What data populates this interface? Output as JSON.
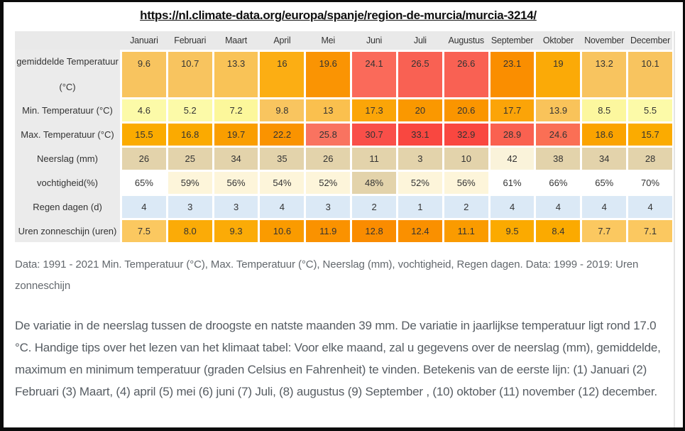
{
  "page": {
    "url_heading": "https://nl.climate-data.org/europa/spanje/region-de-murcia/murcia-3214/"
  },
  "table": {
    "months": [
      "Januari",
      "Februari",
      "Maart",
      "April",
      "Mei",
      "Juni",
      "Juli",
      "Augustus",
      "September",
      "Oktober",
      "November",
      "December"
    ],
    "rows": [
      {
        "label": "gemiddelde Temperatuur (°C)",
        "label_lines": [
          "gemiddelde Temperatuur",
          "(°C)"
        ],
        "values": [
          "9.6",
          "10.7",
          "13.3",
          "16",
          "19.6",
          "24.1",
          "26.5",
          "26.6",
          "23.1",
          "19",
          "13.2",
          "10.1"
        ],
        "cell_colors": [
          "#f8c45f",
          "#f8c45f",
          "#f9c357",
          "#fcae13",
          "#fa9403",
          "#fa6a5a",
          "#f96153",
          "#f96153",
          "#fa8e00",
          "#fbaa07",
          "#f8c45f",
          "#f8c45f"
        ]
      },
      {
        "label": "Min. Temperatuur (°C)",
        "label_lines": [
          "Min. Temperatuur (°C)"
        ],
        "values": [
          "4.6",
          "5.2",
          "7.2",
          "9.8",
          "13",
          "17.3",
          "20",
          "20.6",
          "17.7",
          "13.9",
          "8.5",
          "5.5"
        ],
        "cell_colors": [
          "#fcfaa8",
          "#fcfaa8",
          "#fcf79b",
          "#f9c55f",
          "#fac04e",
          "#fba508",
          "#fa9800",
          "#fa9500",
          "#fba408",
          "#f9c35a",
          "#fcf79e",
          "#fcfaa8"
        ]
      },
      {
        "label": "Max. Temperatuur (°C)",
        "label_lines": [
          "Max. Temperatuur (°C)"
        ],
        "values": [
          "15.5",
          "16.8",
          "19.7",
          "22.2",
          "25.8",
          "30.7",
          "33.1",
          "32.9",
          "28.9",
          "24.6",
          "18.6",
          "15.7"
        ],
        "cell_colors": [
          "#fbab00",
          "#fbaa00",
          "#fa9e00",
          "#fa9300",
          "#f97360",
          "#f94f49",
          "#f94740",
          "#f94740",
          "#fa6150",
          "#fa6f55",
          "#fba300",
          "#fbab00"
        ]
      },
      {
        "label": "Neerslag (mm)",
        "label_lines": [
          "Neerslag (mm)"
        ],
        "values": [
          "26",
          "25",
          "34",
          "35",
          "26",
          "11",
          "3",
          "10",
          "42",
          "38",
          "34",
          "28"
        ],
        "cell_colors": [
          "#e3d3ab",
          "#e3d3ab",
          "#e3d3ab",
          "#e3d3ab",
          "#e3d3ab",
          "#e3d3ab",
          "#e3d3ab",
          "#e3d3ab",
          "#faf3da",
          "#e3d3ab",
          "#e3d3ab",
          "#e3d3ab"
        ]
      },
      {
        "label": "vochtigheid(%)",
        "label_lines": [
          "vochtigheid(%)"
        ],
        "values": [
          "65%",
          "59%",
          "56%",
          "54%",
          "52%",
          "48%",
          "52%",
          "56%",
          "61%",
          "66%",
          "65%",
          "70%"
        ],
        "cell_colors": [
          "#ffffff",
          "#fdf5da",
          "#fdf5da",
          "#fdf5da",
          "#fdf5da",
          "#e3d3ab",
          "#fdf5da",
          "#fdf5da",
          "#ffffff",
          "#ffffff",
          "#ffffff",
          "#ffffff"
        ]
      },
      {
        "label": "Regen dagen (d)",
        "label_lines": [
          "Regen dagen (d)"
        ],
        "values": [
          "4",
          "3",
          "3",
          "4",
          "3",
          "2",
          "1",
          "2",
          "4",
          "4",
          "4",
          "4"
        ],
        "cell_colors": [
          "#dbe9f6",
          "#dbe9f6",
          "#dbe9f6",
          "#dbe9f6",
          "#dbe9f6",
          "#dbe9f6",
          "#dbe9f6",
          "#dbe9f6",
          "#dbe9f6",
          "#dbe9f6",
          "#dbe9f6",
          "#dbe9f6"
        ]
      },
      {
        "label": "Uren zonneschijn (uren)",
        "label_lines": [
          "Uren zonneschijn (uren)"
        ],
        "values": [
          "7.5",
          "8.0",
          "9.3",
          "10.6",
          "11.9",
          "12.8",
          "12.4",
          "11.1",
          "9.5",
          "8.4",
          "7.7",
          "7.1"
        ],
        "cell_colors": [
          "#fbc860",
          "#fbab07",
          "#fbab07",
          "#fa9b00",
          "#fa9200",
          "#fa8c00",
          "#fa9000",
          "#fa9b00",
          "#fbaa00",
          "#fbaa00",
          "#fbc860",
          "#fbc860"
        ]
      }
    ]
  },
  "notes": {
    "data_note": "Data: 1991 - 2021 Min. Temperatuur (°C), Max. Temperatuur (°C), Neerslag (mm), vochtigheid, Regen dagen. Data: 1999 - 2019: Uren zonneschijn"
  },
  "description": {
    "text": "De variatie in de neerslag tussen de droogste en natste maanden 39 mm. De variatie in jaarlijkse temperatuur ligt rond 17.0 °C. Handige tips over het lezen van het klimaat tabel: Voor elke maand, zal u gegevens over de neerslag (mm), gemiddelde, maximum en minimum temperatuur (graden Celsius en Fahrenheit) te vinden. Betekenis van de eerste lijn: (1) Januari (2) Februari (3) Maart, (4) april (5) mei (6) juni (7) Juli, (8) augustus (9) September , (10) oktober (11) november (12) december."
  },
  "chart_data": {
    "type": "table",
    "categories": [
      "Januari",
      "Februari",
      "Maart",
      "April",
      "Mei",
      "Juni",
      "Juli",
      "Augustus",
      "September",
      "Oktober",
      "November",
      "December"
    ],
    "series": [
      {
        "name": "gemiddelde Temperatuur (°C)",
        "values": [
          9.6,
          10.7,
          13.3,
          16,
          19.6,
          24.1,
          26.5,
          26.6,
          23.1,
          19,
          13.2,
          10.1
        ]
      },
      {
        "name": "Min. Temperatuur (°C)",
        "values": [
          4.6,
          5.2,
          7.2,
          9.8,
          13,
          17.3,
          20,
          20.6,
          17.7,
          13.9,
          8.5,
          5.5
        ]
      },
      {
        "name": "Max. Temperatuur (°C)",
        "values": [
          15.5,
          16.8,
          19.7,
          22.2,
          25.8,
          30.7,
          33.1,
          32.9,
          28.9,
          24.6,
          18.6,
          15.7
        ]
      },
      {
        "name": "Neerslag (mm)",
        "values": [
          26,
          25,
          34,
          35,
          26,
          11,
          3,
          10,
          42,
          38,
          34,
          28
        ]
      },
      {
        "name": "vochtigheid(%)",
        "values": [
          65,
          59,
          56,
          54,
          52,
          48,
          52,
          56,
          61,
          66,
          65,
          70
        ]
      },
      {
        "name": "Regen dagen (d)",
        "values": [
          4,
          3,
          3,
          4,
          3,
          2,
          1,
          2,
          4,
          4,
          4,
          4
        ]
      },
      {
        "name": "Uren zonneschijn (uren)",
        "values": [
          7.5,
          8.0,
          9.3,
          10.6,
          11.9,
          12.8,
          12.4,
          11.1,
          9.5,
          8.4,
          7.7,
          7.1
        ]
      }
    ],
    "heatmap_palette": {
      "pale_yellow": "#fcfaa8",
      "amber": "#f8c45f",
      "orange": "#fbab00",
      "dark_orange": "#fa9200",
      "salmon": "#fa6a5a",
      "red": "#f94740",
      "tan": "#e3d3ab",
      "cream": "#fdf5da",
      "light_blue": "#dbe9f6",
      "white": "#ffffff"
    }
  }
}
